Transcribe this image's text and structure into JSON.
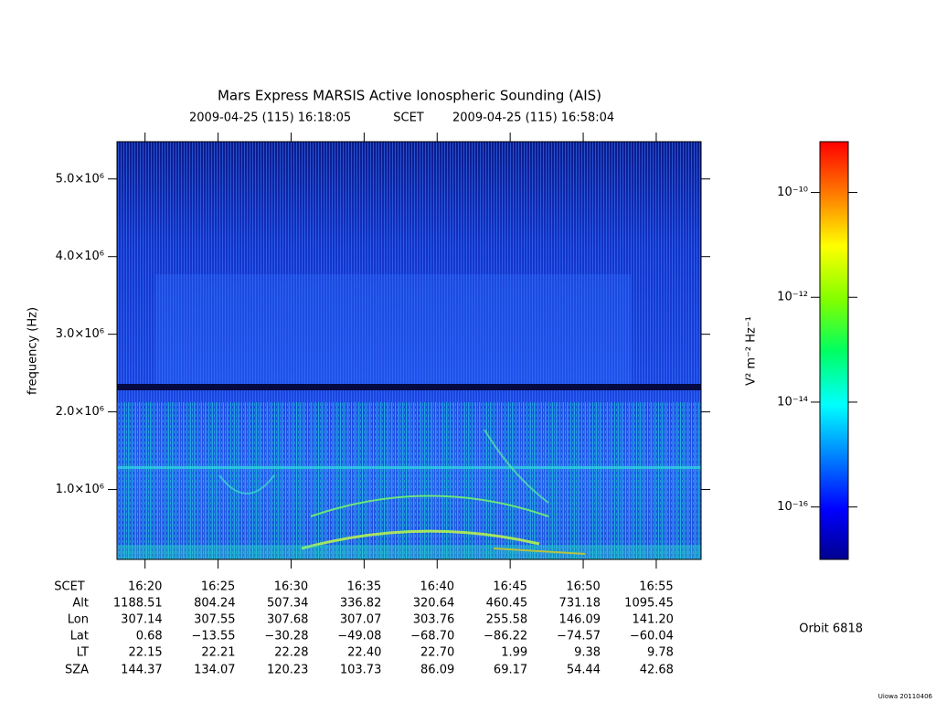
{
  "chart_data": {
    "type": "spectrogram",
    "title": "Mars Express MARSIS Active Ionospheric Sounding (AIS)",
    "start_time": "2009-04-25 (115) 16:18:05",
    "time_system": "SCET",
    "end_time": "2009-04-25 (115) 16:58:04",
    "ylabel": "frequency (Hz)",
    "ylim": [
      100000,
      5480000
    ],
    "yticks": [
      {
        "value": 1000000,
        "label": "1.0×10⁶"
      },
      {
        "value": 2000000,
        "label": "2.0×10⁶"
      },
      {
        "value": 3000000,
        "label": "3.0×10⁶"
      },
      {
        "value": 4000000,
        "label": "4.0×10⁶"
      },
      {
        "value": 5000000,
        "label": "5.0×10⁶"
      }
    ],
    "xlim": [
      978.08,
      1018.07
    ],
    "xticks": [
      {
        "value": 980,
        "label": "16:20"
      },
      {
        "value": 985,
        "label": "16:25"
      },
      {
        "value": 990,
        "label": "16:30"
      },
      {
        "value": 995,
        "label": "16:35"
      },
      {
        "value": 1000,
        "label": "16:40"
      },
      {
        "value": 1005,
        "label": "16:45"
      },
      {
        "value": 1010,
        "label": "16:50"
      },
      {
        "value": 1015,
        "label": "16:55"
      }
    ],
    "ephemeris_label": "SCET",
    "ephemeris": [
      {
        "name": "Alt",
        "values": [
          "1188.51",
          "804.24",
          "507.34",
          "336.82",
          "320.64",
          "460.45",
          "731.18",
          "1095.45"
        ]
      },
      {
        "name": "Lon",
        "values": [
          "307.14",
          "307.55",
          "307.68",
          "307.07",
          "303.76",
          "255.58",
          "146.09",
          "141.20"
        ]
      },
      {
        "name": "Lat",
        "values": [
          "0.68",
          "−13.55",
          "−30.28",
          "−49.08",
          "−68.70",
          "−86.22",
          "−74.57",
          "−60.04"
        ]
      },
      {
        "name": "LT",
        "values": [
          "22.15",
          "22.21",
          "22.28",
          "22.40",
          "22.70",
          "1.99",
          "9.38",
          "9.78"
        ]
      },
      {
        "name": "SZA",
        "values": [
          "144.37",
          "134.07",
          "120.23",
          "103.73",
          "86.09",
          "69.17",
          "54.44",
          "42.68"
        ]
      }
    ],
    "colorbar": {
      "label": "V² m⁻² Hz⁻¹",
      "log_scale": true,
      "zlim": [
        1e-17,
        9.3e-10
      ],
      "ticks": [
        {
          "value": 1e-10,
          "label": "10⁻¹⁰"
        },
        {
          "value": 1e-12,
          "label": "10⁻¹²"
        },
        {
          "value": 1e-14,
          "label": "10⁻¹⁴"
        },
        {
          "value": 1e-16,
          "label": "10⁻¹⁶"
        }
      ]
    },
    "orbit": "Orbit 6818",
    "footer": "Uiowa 20110406"
  }
}
